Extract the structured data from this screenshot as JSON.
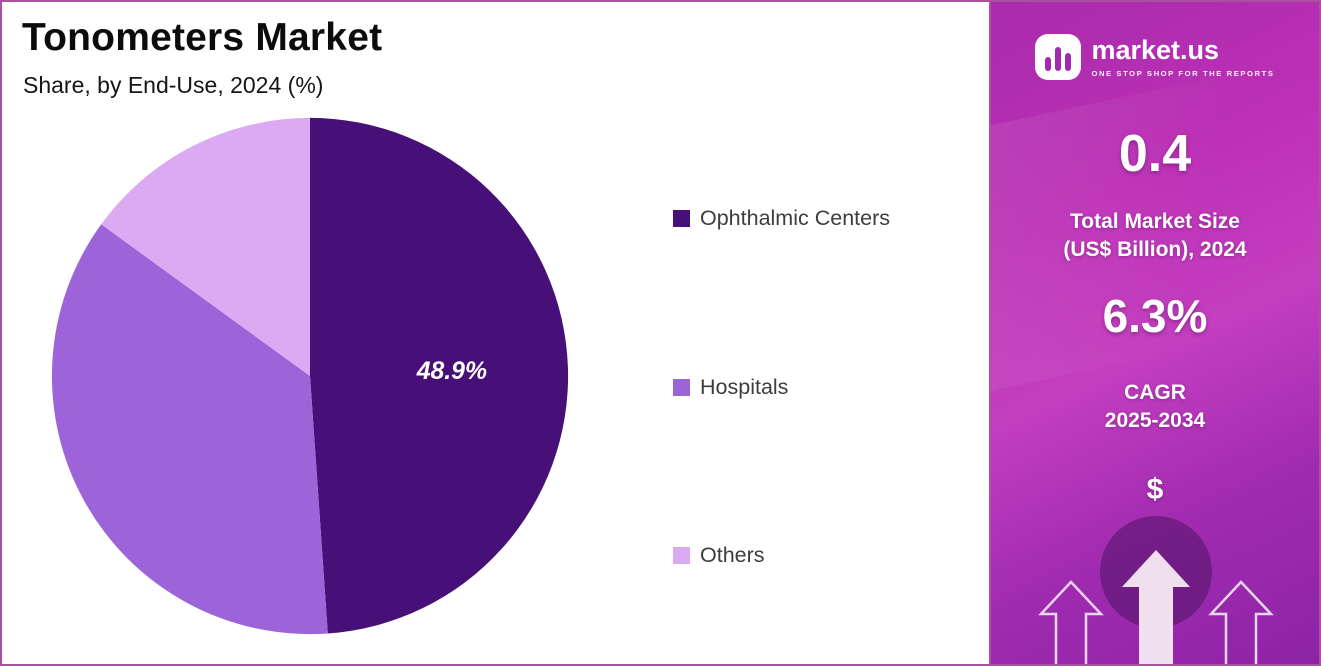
{
  "header": {
    "title": "Tonometers Market",
    "subtitle": "Share, by End-Use, 2024 (%)"
  },
  "chart_data": {
    "type": "pie",
    "categories": [
      "Ophthalmic Centers",
      "Hospitals",
      "Others"
    ],
    "values": [
      48.9,
      36.1,
      15.0
    ],
    "colors": [
      "#471078",
      "#9d64da",
      "#dcaaf2"
    ],
    "data_label": "48.9%",
    "label_slice": 0,
    "start_angle_deg": 0,
    "legend_position": "right",
    "background": "#ffffff"
  },
  "panel": {
    "logo_text": "market.us",
    "logo_tagline": "ONE STOP SHOP FOR THE REPORTS",
    "market_size_value": "0.4",
    "market_size_label_line1": "Total Market Size",
    "market_size_label_line2": "(US$ Billion), 2024",
    "cagr_value": "6.3%",
    "cagr_label_line1": "CAGR",
    "cagr_label_line2": "2025-2034",
    "currency_symbol": "$",
    "gradient_colors": [
      "#a92bac",
      "#c43ec0",
      "#8d23a6"
    ]
  }
}
